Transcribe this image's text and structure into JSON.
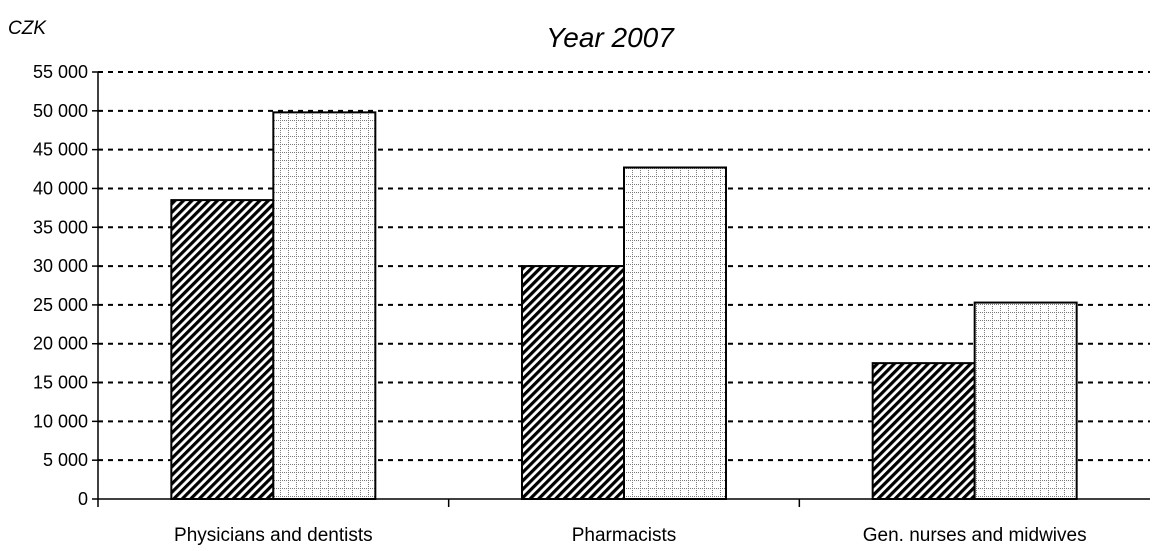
{
  "chart_data": {
    "type": "bar",
    "title": "Year 2007",
    "unit_label": "CZK",
    "categories": [
      "Physicians and dentists",
      "Pharmacists",
      "Gen. nurses and midwives"
    ],
    "series": [
      {
        "pattern": "diagonal-hatch",
        "values": [
          38500,
          30000,
          17500
        ]
      },
      {
        "pattern": "dotted-grid",
        "values": [
          49800,
          42700,
          25300
        ]
      }
    ],
    "ylim": [
      0,
      55000
    ],
    "yticks": [
      0,
      5000,
      10000,
      15000,
      20000,
      25000,
      30000,
      35000,
      40000,
      45000,
      50000,
      55000
    ],
    "ytick_labels": [
      "0",
      "5 000",
      "10 000",
      "15 000",
      "20 000",
      "25 000",
      "30 000",
      "35 000",
      "40 000",
      "45 000",
      "50 000",
      "55 000"
    ],
    "grid": true,
    "legend": "none"
  }
}
